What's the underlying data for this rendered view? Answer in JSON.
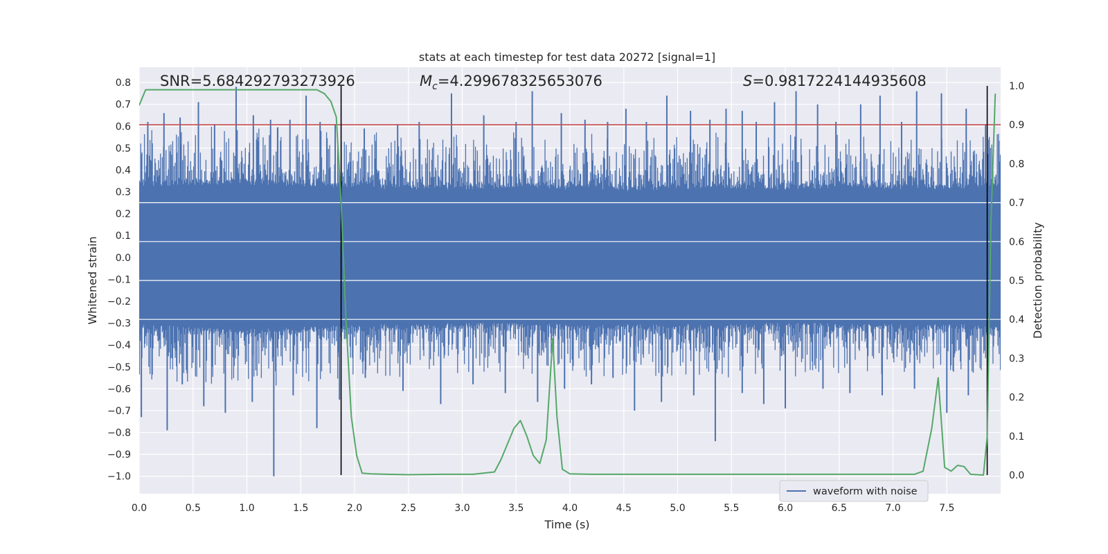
{
  "chart_data": {
    "type": "line",
    "title": "stats at each timestep for test data 20272 [signal=1]",
    "xlabel": "Time (s)",
    "ylabel_left": "Whitened strain",
    "ylabel_right": "Detection probability",
    "xlim": [
      0.0,
      8.0
    ],
    "ylim_left": [
      -1.08,
      0.87
    ],
    "ylim_right": [
      -0.048,
      1.048
    ],
    "x_ticks": [
      0.0,
      0.5,
      1.0,
      1.5,
      2.0,
      2.5,
      3.0,
      3.5,
      4.0,
      4.5,
      5.0,
      5.5,
      6.0,
      6.5,
      7.0,
      7.5
    ],
    "x_tick_labels": [
      "0.0",
      "0.5",
      "1.0",
      "1.5",
      "2.0",
      "2.5",
      "3.0",
      "3.5",
      "4.0",
      "4.5",
      "5.0",
      "5.5",
      "6.0",
      "6.5",
      "7.0",
      "7.5"
    ],
    "y_left_ticks": [
      0.8,
      0.7,
      0.6,
      0.5,
      0.4,
      0.3,
      0.2,
      0.1,
      0.0,
      -0.1,
      -0.2,
      -0.3,
      -0.4,
      -0.5,
      -0.6,
      -0.7,
      -0.8,
      -0.9,
      -1.0
    ],
    "y_left_tick_labels": [
      "0.8",
      "0.7",
      "0.6",
      "0.5",
      "0.4",
      "0.3",
      "0.2",
      "0.1",
      "0.0",
      "−0.1",
      "−0.2",
      "−0.3",
      "−0.4",
      "−0.5",
      "−0.6",
      "−0.7",
      "−0.8",
      "−0.9",
      "−1.0"
    ],
    "y_right_ticks": [
      1.0,
      0.9,
      0.8,
      0.7,
      0.6,
      0.5,
      0.4,
      0.3,
      0.2,
      0.1,
      0.0
    ],
    "y_right_tick_labels": [
      "1.0",
      "0.9",
      "0.8",
      "0.7",
      "0.6",
      "0.5",
      "0.4",
      "0.3",
      "0.2",
      "0.1",
      "0.0"
    ],
    "annotations": {
      "snr_label": "SNR",
      "snr_value": "=5.684292793273926",
      "mc_label": "M",
      "mc_sub": "c",
      "mc_value": "=4.299678325653076",
      "s_label": "S",
      "s_value": "=0.9817224144935608"
    },
    "threshold_line": {
      "y_right": 0.9,
      "color": "#c44e52"
    },
    "vertical_markers_x": [
      1.875,
      7.875
    ],
    "legend": {
      "entries": [
        "waveform with noise"
      ],
      "location": "lower-right"
    },
    "series": [
      {
        "name": "waveform with noise",
        "axis": "left",
        "color": "#4c72b0",
        "envelope": {
          "x": [
            0.0,
            0.5,
            1.0,
            1.5,
            2.0,
            2.5,
            3.0,
            3.5,
            4.0,
            4.5,
            5.0,
            5.5,
            6.0,
            6.5,
            7.0,
            7.5,
            8.0
          ],
          "upper": [
            0.45,
            0.46,
            0.46,
            0.45,
            0.44,
            0.43,
            0.43,
            0.44,
            0.43,
            0.42,
            0.43,
            0.43,
            0.43,
            0.44,
            0.43,
            0.43,
            0.44
          ],
          "lower": [
            -0.42,
            -0.44,
            -0.45,
            -0.44,
            -0.42,
            -0.42,
            -0.41,
            -0.41,
            -0.42,
            -0.42,
            -0.42,
            -0.42,
            -0.41,
            -0.41,
            -0.42,
            -0.42,
            -0.42
          ]
        },
        "peaks": {
          "x": [
            0.08,
            0.23,
            0.38,
            0.55,
            0.7,
            0.9,
            1.06,
            1.22,
            1.4,
            1.55,
            1.68,
            1.82,
            2.09,
            2.4,
            2.6,
            2.9,
            3.2,
            3.5,
            3.65,
            3.92,
            4.14,
            4.35,
            4.52,
            4.71,
            4.9,
            5.12,
            5.3,
            5.45,
            5.6,
            5.73,
            5.9,
            6.1,
            6.3,
            6.47,
            6.7,
            6.88,
            7.08,
            7.22,
            7.45,
            7.68,
            7.86
          ],
          "y": [
            0.62,
            0.66,
            0.64,
            0.71,
            0.61,
            0.78,
            0.65,
            0.63,
            0.63,
            0.74,
            0.62,
            0.61,
            0.59,
            0.61,
            0.62,
            0.75,
            0.65,
            0.62,
            0.76,
            0.66,
            0.63,
            0.62,
            0.68,
            0.62,
            0.74,
            0.67,
            0.63,
            0.68,
            0.67,
            0.62,
            0.71,
            0.76,
            0.7,
            0.62,
            0.7,
            0.74,
            0.62,
            0.76,
            0.75,
            0.68,
            0.61
          ]
        },
        "troughs": {
          "x": [
            0.02,
            0.26,
            0.4,
            0.6,
            0.8,
            1.05,
            1.25,
            1.43,
            1.65,
            1.86,
            2.1,
            2.45,
            2.8,
            3.1,
            3.4,
            3.7,
            3.95,
            4.2,
            4.4,
            4.6,
            4.85,
            5.15,
            5.35,
            5.6,
            5.8,
            6.0,
            6.35,
            6.6,
            6.9,
            7.2,
            7.5,
            7.7,
            7.88
          ],
          "y": [
            -0.73,
            -0.79,
            -0.58,
            -0.68,
            -0.71,
            -0.66,
            -1.0,
            -0.63,
            -0.78,
            -0.65,
            -0.55,
            -0.61,
            -0.67,
            -0.58,
            -0.62,
            -0.66,
            -0.6,
            -0.58,
            -0.55,
            -0.7,
            -0.66,
            -0.63,
            -0.84,
            -0.62,
            -0.67,
            -0.69,
            -0.6,
            -0.62,
            -0.63,
            -0.6,
            -0.71,
            -0.63,
            -0.7
          ]
        }
      },
      {
        "name": "detection probability",
        "axis": "right",
        "color": "#55a868",
        "x": [
          0.0,
          0.06,
          0.12,
          0.3,
          0.6,
          0.9,
          1.2,
          1.5,
          1.65,
          1.72,
          1.78,
          1.83,
          1.875,
          1.92,
          1.97,
          2.02,
          2.07,
          2.15,
          2.3,
          2.5,
          2.8,
          3.1,
          3.3,
          3.36,
          3.42,
          3.48,
          3.54,
          3.6,
          3.66,
          3.72,
          3.78,
          3.84,
          3.88,
          3.93,
          4.0,
          4.2,
          4.6,
          5.0,
          5.4,
          5.8,
          6.2,
          6.6,
          6.9,
          7.2,
          7.28,
          7.36,
          7.42,
          7.48,
          7.54,
          7.6,
          7.66,
          7.72,
          7.78,
          7.84,
          7.875,
          7.91,
          7.95
        ],
        "y": [
          0.95,
          0.99,
          0.99,
          0.99,
          0.99,
          0.99,
          0.99,
          0.99,
          0.99,
          0.98,
          0.96,
          0.92,
          0.7,
          0.4,
          0.15,
          0.05,
          0.005,
          0.003,
          0.002,
          0.001,
          0.002,
          0.002,
          0.008,
          0.04,
          0.08,
          0.12,
          0.14,
          0.1,
          0.05,
          0.03,
          0.09,
          0.35,
          0.15,
          0.015,
          0.003,
          0.002,
          0.002,
          0.002,
          0.002,
          0.002,
          0.002,
          0.002,
          0.002,
          0.002,
          0.01,
          0.12,
          0.25,
          0.02,
          0.01,
          0.025,
          0.022,
          0.002,
          0.001,
          0.0,
          0.1,
          0.65,
          0.98
        ]
      }
    ]
  }
}
